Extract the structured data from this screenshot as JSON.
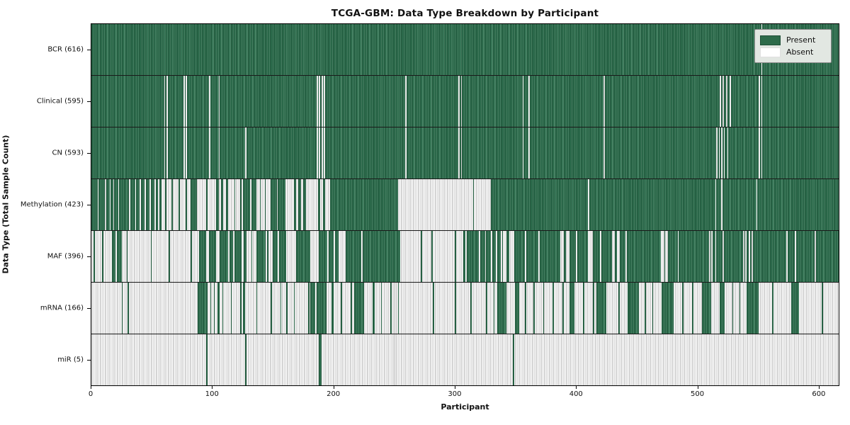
{
  "title": "TCGA-GBM: Data Type Breakdown by Participant",
  "xlabel": "Participant",
  "ylabel": "Data Type (Total Sample Count)",
  "legend": {
    "present_label": "Present",
    "absent_label": "Absent"
  },
  "colors": {
    "present": "#2d6b4a",
    "present_gap": "#5d9377",
    "absent": "#ffffff",
    "absent_gap": "#a9a9a9",
    "legend_bg": "#e2e7e2",
    "separator": "#1a1a1a"
  },
  "chart_data": {
    "type": "heatmap",
    "title": "TCGA-GBM: Data Type Breakdown by Participant",
    "xlabel": "Participant",
    "ylabel": "Data Type (Total Sample Count)",
    "legend_entries": [
      "Present",
      "Absent"
    ],
    "legend_position": "upper right",
    "grid": false,
    "n_participants": 617,
    "xlim": [
      0,
      617
    ],
    "x_ticks": [
      0,
      100,
      200,
      300,
      400,
      500,
      600
    ],
    "rows": [
      {
        "name": "BCR",
        "label": "BCR (616)",
        "total": 616,
        "present_runs": [
          [
            0,
            553
          ],
          [
            554,
            617
          ]
        ]
      },
      {
        "name": "Clinical",
        "label": "Clinical (595)",
        "total": 595,
        "present_runs": [
          [
            0,
            60
          ],
          [
            61,
            62
          ],
          [
            63,
            76
          ],
          [
            77,
            78
          ],
          [
            79,
            97
          ],
          [
            98,
            105
          ],
          [
            106,
            186
          ],
          [
            187,
            188
          ],
          [
            189,
            190
          ],
          [
            191,
            192
          ],
          [
            193,
            259
          ],
          [
            260,
            303
          ],
          [
            304,
            305
          ],
          [
            306,
            356
          ],
          [
            357,
            361
          ],
          [
            362,
            423
          ],
          [
            424,
            519
          ],
          [
            520,
            521
          ],
          [
            522,
            524
          ],
          [
            525,
            527
          ],
          [
            528,
            551
          ],
          [
            552,
            553
          ],
          [
            554,
            617
          ]
        ]
      },
      {
        "name": "CN",
        "label": "CN (593)",
        "total": 593,
        "present_runs": [
          [
            0,
            60
          ],
          [
            61,
            62
          ],
          [
            63,
            76
          ],
          [
            77,
            78
          ],
          [
            79,
            97
          ],
          [
            98,
            105
          ],
          [
            106,
            127
          ],
          [
            128,
            186
          ],
          [
            187,
            188
          ],
          [
            189,
            190
          ],
          [
            191,
            192
          ],
          [
            193,
            259
          ],
          [
            260,
            303
          ],
          [
            304,
            305
          ],
          [
            306,
            356
          ],
          [
            357,
            361
          ],
          [
            362,
            423
          ],
          [
            424,
            516
          ],
          [
            517,
            518
          ],
          [
            519,
            520
          ],
          [
            521,
            522
          ],
          [
            523,
            525
          ],
          [
            526,
            551
          ],
          [
            552,
            553
          ],
          [
            554,
            617
          ]
        ]
      },
      {
        "name": "Methylation",
        "label": "Methylation (423)",
        "total": 423,
        "present_runs": [
          [
            0,
            5
          ],
          [
            6,
            11
          ],
          [
            12,
            15
          ],
          [
            16,
            18
          ],
          [
            19,
            22
          ],
          [
            23,
            31
          ],
          [
            32,
            36
          ],
          [
            37,
            40
          ],
          [
            41,
            44
          ],
          [
            45,
            48
          ],
          [
            49,
            52
          ],
          [
            53,
            55
          ],
          [
            56,
            58
          ],
          [
            61,
            62
          ],
          [
            66,
            67
          ],
          [
            72,
            73
          ],
          [
            78,
            79
          ],
          [
            82,
            87
          ],
          [
            95,
            96
          ],
          [
            103,
            105
          ],
          [
            107,
            109
          ],
          [
            111,
            113
          ],
          [
            118,
            119
          ],
          [
            123,
            124
          ],
          [
            125,
            131
          ],
          [
            132,
            136
          ],
          [
            139,
            140
          ],
          [
            143,
            144
          ],
          [
            148,
            153
          ],
          [
            154,
            160
          ],
          [
            167,
            169
          ],
          [
            171,
            173
          ],
          [
            175,
            177
          ],
          [
            187,
            189
          ],
          [
            191,
            193
          ],
          [
            197,
            253
          ],
          [
            315,
            316
          ],
          [
            330,
            410
          ],
          [
            411,
            515
          ],
          [
            516,
            520
          ],
          [
            521,
            549
          ],
          [
            550,
            617
          ]
        ]
      },
      {
        "name": "MAF",
        "label": "MAF (396)",
        "total": 396,
        "present_runs": [
          [
            2,
            3
          ],
          [
            9,
            10
          ],
          [
            17,
            20
          ],
          [
            21,
            25
          ],
          [
            29,
            30
          ],
          [
            49,
            50
          ],
          [
            64,
            65
          ],
          [
            82,
            83
          ],
          [
            89,
            95
          ],
          [
            97,
            103
          ],
          [
            106,
            113
          ],
          [
            114,
            117
          ],
          [
            118,
            124
          ],
          [
            126,
            128
          ],
          [
            132,
            133
          ],
          [
            136,
            144
          ],
          [
            145,
            146
          ],
          [
            150,
            154
          ],
          [
            155,
            161
          ],
          [
            169,
            181
          ],
          [
            188,
            195
          ],
          [
            196,
            200
          ],
          [
            201,
            204
          ],
          [
            210,
            223
          ],
          [
            224,
            255
          ],
          [
            272,
            273
          ],
          [
            281,
            282
          ],
          [
            300,
            301
          ],
          [
            307,
            309
          ],
          [
            310,
            320
          ],
          [
            321,
            325
          ],
          [
            326,
            330
          ],
          [
            331,
            334
          ],
          [
            335,
            338
          ],
          [
            339,
            340
          ],
          [
            343,
            345
          ],
          [
            349,
            358
          ],
          [
            359,
            369
          ],
          [
            370,
            387
          ],
          [
            390,
            392
          ],
          [
            395,
            400
          ],
          [
            401,
            410
          ],
          [
            414,
            420
          ],
          [
            421,
            430
          ],
          [
            432,
            434
          ],
          [
            436,
            441
          ],
          [
            442,
            470
          ],
          [
            473,
            474
          ],
          [
            476,
            484
          ],
          [
            485,
            510
          ],
          [
            511,
            512
          ],
          [
            513,
            515
          ],
          [
            516,
            521
          ],
          [
            522,
            538
          ],
          [
            539,
            540
          ],
          [
            541,
            543
          ],
          [
            544,
            545
          ],
          [
            546,
            574
          ],
          [
            575,
            581
          ],
          [
            582,
            597
          ],
          [
            598,
            617
          ]
        ]
      },
      {
        "name": "mRNA",
        "label": "mRNA (166)",
        "total": 166,
        "present_runs": [
          [
            25,
            26
          ],
          [
            30,
            31
          ],
          [
            88,
            96
          ],
          [
            98,
            99
          ],
          [
            101,
            102
          ],
          [
            104,
            106
          ],
          [
            108,
            109
          ],
          [
            115,
            116
          ],
          [
            123,
            124
          ],
          [
            125,
            127
          ],
          [
            136,
            137
          ],
          [
            148,
            149
          ],
          [
            156,
            157
          ],
          [
            161,
            162
          ],
          [
            167,
            168
          ],
          [
            179,
            180
          ],
          [
            181,
            185
          ],
          [
            186,
            194
          ],
          [
            198,
            200
          ],
          [
            206,
            207
          ],
          [
            214,
            215
          ],
          [
            217,
            225
          ],
          [
            232,
            234
          ],
          [
            239,
            240
          ],
          [
            247,
            248
          ],
          [
            253,
            254
          ],
          [
            282,
            283
          ],
          [
            300,
            301
          ],
          [
            313,
            314
          ],
          [
            326,
            327
          ],
          [
            332,
            333
          ],
          [
            335,
            343
          ],
          [
            350,
            353
          ],
          [
            358,
            359
          ],
          [
            365,
            366
          ],
          [
            373,
            374
          ],
          [
            381,
            382
          ],
          [
            389,
            390
          ],
          [
            395,
            399
          ],
          [
            406,
            407
          ],
          [
            414,
            415
          ],
          [
            417,
            425
          ],
          [
            435,
            436
          ],
          [
            443,
            444
          ],
          [
            444,
            452
          ],
          [
            457,
            458
          ],
          [
            463,
            464
          ],
          [
            471,
            481
          ],
          [
            488,
            489
          ],
          [
            496,
            497
          ],
          [
            504,
            512
          ],
          [
            519,
            523
          ],
          [
            529,
            530
          ],
          [
            535,
            536
          ],
          [
            541,
            551
          ],
          [
            562,
            563
          ],
          [
            578,
            584
          ],
          [
            603,
            604
          ]
        ]
      },
      {
        "name": "miR",
        "label": "miR (5)",
        "total": 5,
        "present_runs": [
          [
            95,
            96
          ],
          [
            127,
            128
          ],
          [
            188,
            190
          ],
          [
            348,
            349
          ]
        ]
      }
    ]
  }
}
